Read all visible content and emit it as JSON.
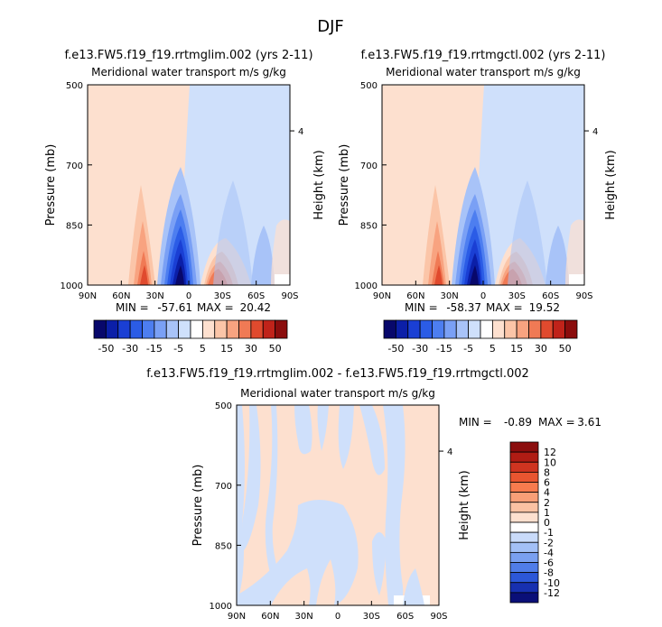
{
  "page_title": "DJF",
  "chart_data": [
    {
      "type": "heatmap",
      "title": "f.e13.FW5.f19_f19.rrtmglim.002 (yrs 2-11)",
      "subtitle": "Meridional water transport m/s g/kg",
      "xlabel": "",
      "ylabel": "Pressure (mb)",
      "y2label": "Height (km)",
      "xticks": [
        "90N",
        "60N",
        "30N",
        "0",
        "30S",
        "60S",
        "90S"
      ],
      "yticks": [
        "500",
        "700",
        "850",
        "1000"
      ],
      "y2ticks": [
        "4"
      ],
      "ylim": [
        1000,
        500
      ],
      "stats": {
        "min_label": "MIN =",
        "min": "-57.61",
        "max_label": "MAX =",
        "max": "20.42"
      },
      "colorbar": {
        "orientation": "horizontal",
        "labels": [
          "-50",
          "-30",
          "-15",
          "-5",
          "5",
          "15",
          "30",
          "50"
        ],
        "colors": [
          "#08086b",
          "#0b1fa8",
          "#1a3fd4",
          "#2b5ce6",
          "#4d7ef0",
          "#7aa0f5",
          "#a8c3f8",
          "#cfe0fb",
          "#ffffff",
          "#fde0cf",
          "#fbc5a8",
          "#f8a380",
          "#f07a55",
          "#e04a2e",
          "#c0231a",
          "#8b0d0d"
        ]
      }
    },
    {
      "type": "heatmap",
      "title": "f.e13.FW5.f19_f19.rrtmgctl.002 (yrs 2-11)",
      "subtitle": "Meridional water transport m/s g/kg",
      "xlabel": "",
      "ylabel": "Pressure (mb)",
      "y2label": "Height (km)",
      "xticks": [
        "90N",
        "60N",
        "30N",
        "0",
        "30S",
        "60S",
        "90S"
      ],
      "yticks": [
        "500",
        "700",
        "850",
        "1000"
      ],
      "y2ticks": [
        "4"
      ],
      "ylim": [
        1000,
        500
      ],
      "stats": {
        "min_label": "MIN =",
        "min": "-58.37",
        "max_label": "MAX =",
        "max": "19.52"
      },
      "colorbar": {
        "orientation": "horizontal",
        "labels": [
          "-50",
          "-30",
          "-15",
          "-5",
          "5",
          "15",
          "30",
          "50"
        ],
        "colors": [
          "#08086b",
          "#0b1fa8",
          "#1a3fd4",
          "#2b5ce6",
          "#4d7ef0",
          "#7aa0f5",
          "#a8c3f8",
          "#cfe0fb",
          "#ffffff",
          "#fde0cf",
          "#fbc5a8",
          "#f8a380",
          "#f07a55",
          "#e04a2e",
          "#c0231a",
          "#8b0d0d"
        ]
      }
    },
    {
      "type": "heatmap",
      "title": "f.e13.FW5.f19_f19.rrtmglim.002 - f.e13.FW5.f19_f19.rrtmgctl.002",
      "subtitle": "Meridional water transport m/s g/kg",
      "xlabel": "",
      "ylabel": "Pressure (mb)",
      "y2label": "Height (km)",
      "xticks": [
        "90N",
        "60N",
        "30N",
        "0",
        "30S",
        "60S",
        "90S"
      ],
      "yticks": [
        "500",
        "700",
        "850",
        "1000"
      ],
      "y2ticks": [
        "4"
      ],
      "ylim": [
        1000,
        500
      ],
      "stats": {
        "min_label": "MIN =",
        "min": "-0.89",
        "max_label": "MAX =",
        "max": "3.61"
      },
      "colorbar": {
        "orientation": "vertical",
        "labels": [
          "12",
          "10",
          "8",
          "6",
          "4",
          "2",
          "1",
          "0",
          "-1",
          "-2",
          "-4",
          "-6",
          "-8",
          "-10",
          "-12"
        ],
        "colors": [
          "#8b0d0d",
          "#b01c14",
          "#cf3420",
          "#e85530",
          "#f77b4e",
          "#f99f77",
          "#fbc2a3",
          "#fde0cf",
          "#ffffff",
          "#c9dbfa",
          "#a3c0f6",
          "#7aa0f0",
          "#507de8",
          "#2c57d8",
          "#1730b0",
          "#0a0f78"
        ]
      }
    }
  ]
}
